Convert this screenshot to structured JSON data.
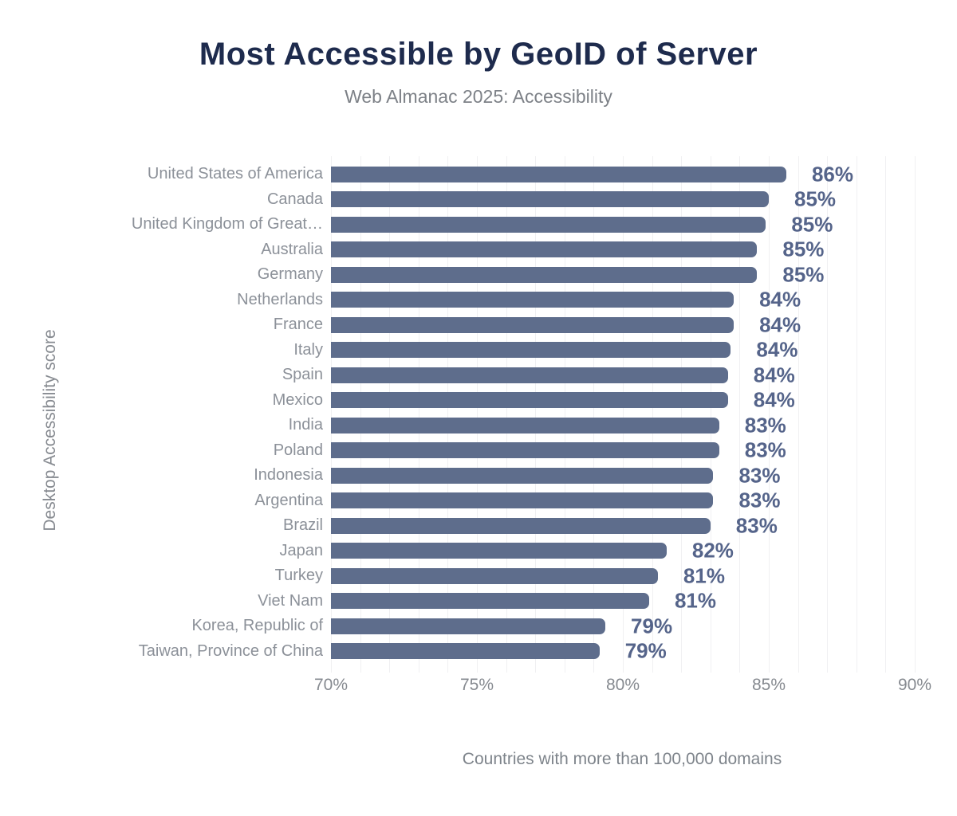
{
  "chart_data": {
    "type": "bar",
    "orientation": "horizontal",
    "title": "Most Accessible by GeoID of Server",
    "subtitle": "Web Almanac 2025: Accessibility",
    "ylabel": "Desktop Accessibility score",
    "xlabel": "Countries with more than 100,000 domains",
    "xlim": [
      70,
      90
    ],
    "grid": "vertical, every 1%",
    "xticks": [
      70,
      75,
      80,
      85,
      90
    ],
    "xtick_labels": [
      "70%",
      "75%",
      "80%",
      "85%",
      "90%"
    ],
    "categories": [
      "United States of America",
      "Canada",
      "United Kingdom of Great…",
      "Australia",
      "Germany",
      "Netherlands",
      "France",
      "Italy",
      "Spain",
      "Mexico",
      "India",
      "Poland",
      "Indonesia",
      "Argentina",
      "Brazil",
      "Japan",
      "Turkey",
      "Viet Nam",
      "Korea, Republic of",
      "Taiwan, Province of China"
    ],
    "values": [
      86,
      85,
      85,
      85,
      85,
      84,
      84,
      84,
      84,
      84,
      83,
      83,
      83,
      83,
      83,
      82,
      81,
      81,
      79,
      79
    ],
    "value_labels": [
      "86%",
      "85%",
      "85%",
      "85%",
      "85%",
      "84%",
      "84%",
      "84%",
      "84%",
      "84%",
      "83%",
      "83%",
      "83%",
      "83%",
      "83%",
      "82%",
      "81%",
      "81%",
      "79%",
      "79%"
    ],
    "values_precise": [
      85.6,
      85.0,
      84.9,
      84.6,
      84.6,
      83.8,
      83.8,
      83.7,
      83.6,
      83.6,
      83.3,
      83.3,
      83.1,
      83.1,
      83.0,
      81.5,
      81.2,
      80.9,
      79.4,
      79.2
    ],
    "legend": "none",
    "colors": {
      "bar": "#5e6d8c",
      "value_label": "#55648a",
      "title": "#1e2b4d",
      "subtitle": "#7d8187",
      "axis_text": "#868a90",
      "category_text": "#8c9199",
      "gridline": "#f0f0f2",
      "background": "#ffffff"
    }
  }
}
